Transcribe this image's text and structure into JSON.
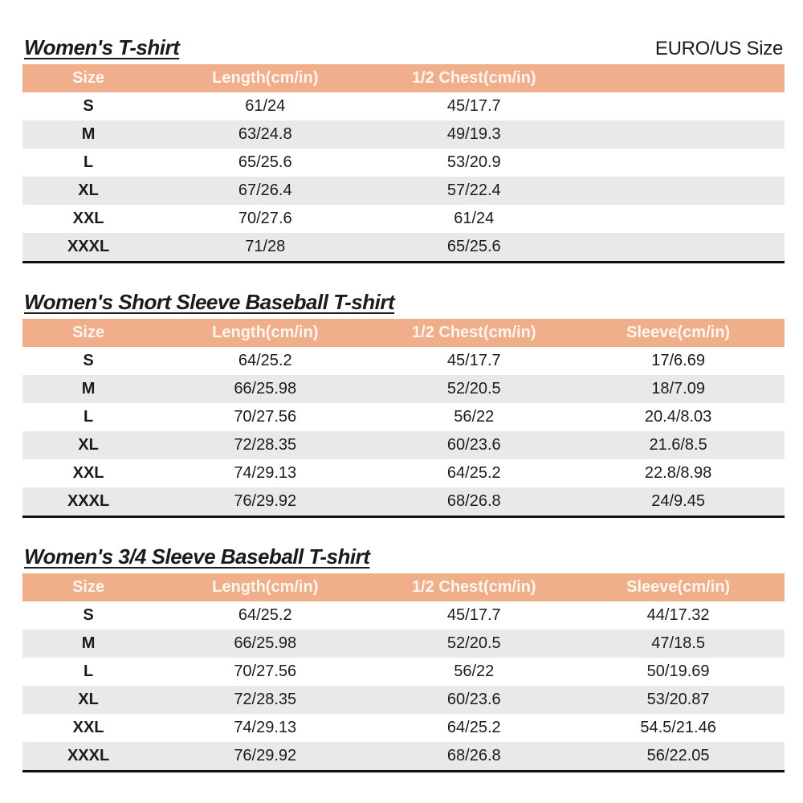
{
  "header": {
    "size_standard_label": "EURO/US Size"
  },
  "colors": {
    "header_bg": "#F0AE8B",
    "header_text": "#FCF6EE",
    "stripe": "#E9E9E9",
    "rule": "#111111"
  },
  "tables": [
    {
      "title": "Women's T-shirt",
      "columns": [
        "Size",
        "Length(cm/in)",
        "1/2 Chest(cm/in)"
      ],
      "rows": [
        [
          "S",
          "61/24",
          "45/17.7"
        ],
        [
          "M",
          "63/24.8",
          "49/19.3"
        ],
        [
          "L",
          "65/25.6",
          "53/20.9"
        ],
        [
          "XL",
          "67/26.4",
          "57/22.4"
        ],
        [
          "XXL",
          "70/27.6",
          "61/24"
        ],
        [
          "XXXL",
          "71/28",
          "65/25.6"
        ]
      ]
    },
    {
      "title": "Women's Short Sleeve Baseball T-shirt",
      "columns": [
        "Size",
        "Length(cm/in)",
        "1/2 Chest(cm/in)",
        "Sleeve(cm/in)"
      ],
      "rows": [
        [
          "S",
          "64/25.2",
          "45/17.7",
          "17/6.69"
        ],
        [
          "M",
          "66/25.98",
          "52/20.5",
          "18/7.09"
        ],
        [
          "L",
          "70/27.56",
          "56/22",
          "20.4/8.03"
        ],
        [
          "XL",
          "72/28.35",
          "60/23.6",
          "21.6/8.5"
        ],
        [
          "XXL",
          "74/29.13",
          "64/25.2",
          "22.8/8.98"
        ],
        [
          "XXXL",
          "76/29.92",
          "68/26.8",
          "24/9.45"
        ]
      ]
    },
    {
      "title": "Women's 3/4 Sleeve Baseball T-shirt",
      "columns": [
        "Size",
        "Length(cm/in)",
        "1/2 Chest(cm/in)",
        "Sleeve(cm/in)"
      ],
      "rows": [
        [
          "S",
          "64/25.2",
          "45/17.7",
          "44/17.32"
        ],
        [
          "M",
          "66/25.98",
          "52/20.5",
          "47/18.5"
        ],
        [
          "L",
          "70/27.56",
          "56/22",
          "50/19.69"
        ],
        [
          "XL",
          "72/28.35",
          "60/23.6",
          "53/20.87"
        ],
        [
          "XXL",
          "74/29.13",
          "64/25.2",
          "54.5/21.46"
        ],
        [
          "XXXL",
          "76/29.92",
          "68/26.8",
          "56/22.05"
        ]
      ]
    }
  ]
}
